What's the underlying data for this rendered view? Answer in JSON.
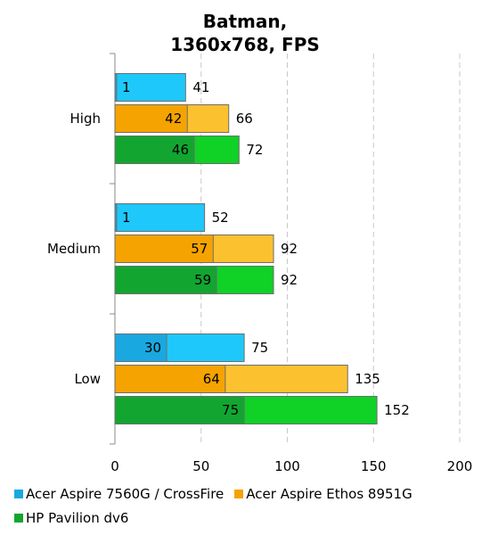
{
  "chart_data": {
    "type": "bar",
    "orientation": "horizontal",
    "stacked": true,
    "title": [
      "Batman,",
      "1360x768, FPS"
    ],
    "categories": [
      "High",
      "Medium",
      "Low"
    ],
    "xlim": [
      0,
      200
    ],
    "xticks": [
      0,
      50,
      100,
      150,
      200
    ],
    "grid": "vertical dashed",
    "legend_position": "bottom",
    "series": [
      {
        "name": "Acer Aspire 7560G / CrossFire",
        "min": [
          1,
          1,
          30
        ],
        "avg": [
          41,
          52,
          75
        ],
        "color_min": "#1aa8e0",
        "color_avg": "#1ec8fa"
      },
      {
        "name": "Acer Aspire Ethos 8951G",
        "min": [
          42,
          57,
          64
        ],
        "avg": [
          66,
          92,
          135
        ],
        "color_min": "#f5a300",
        "color_avg": "#fcc12e"
      },
      {
        "name": "HP Pavilion dv6",
        "min": [
          46,
          59,
          75
        ],
        "avg": [
          72,
          92,
          152
        ],
        "color_min": "#12a530",
        "color_avg": "#0fd126"
      }
    ],
    "legend_colors": [
      "#1aa8e0",
      "#f5a300",
      "#12a530"
    ]
  }
}
